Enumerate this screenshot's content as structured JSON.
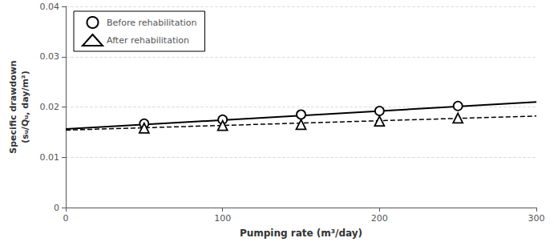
{
  "chart_data": {
    "type": "scatter",
    "xlabel": "Pumping rate (m³/day)",
    "ylabel": "Specific drawdown\n(sᵤ/Qᵤ, day/m²)",
    "xlim": [
      0,
      300
    ],
    "xticks": [
      0,
      100,
      200,
      300
    ],
    "ylim": [
      0,
      0.04
    ],
    "yticks": [
      0,
      0.01,
      0.02,
      0.03,
      0.04
    ],
    "grid": "y",
    "legend": "upper left",
    "series": [
      {
        "type": "line",
        "line_style": "solid",
        "color": "#000000",
        "x": [
          0,
          300
        ],
        "values": [
          0.0156,
          0.021
        ]
      },
      {
        "type": "line",
        "line_style": "dashed",
        "color": "#000000",
        "x": [
          0,
          300
        ],
        "values": [
          0.0154,
          0.0182
        ]
      },
      {
        "name": "Before rehabilitation",
        "type": "scatter",
        "marker": "circle",
        "color": "#000000",
        "x": [
          50,
          100,
          150,
          200,
          250
        ],
        "values": [
          0.0167,
          0.0175,
          0.0185,
          0.0192,
          0.0202
        ]
      },
      {
        "name": "After rehabilitation",
        "type": "scatter",
        "marker": "triangle",
        "color": "#000000",
        "x": [
          50,
          100,
          150,
          200,
          250
        ],
        "values": [
          0.0158,
          0.0163,
          0.0165,
          0.0172,
          0.0178
        ]
      }
    ]
  }
}
